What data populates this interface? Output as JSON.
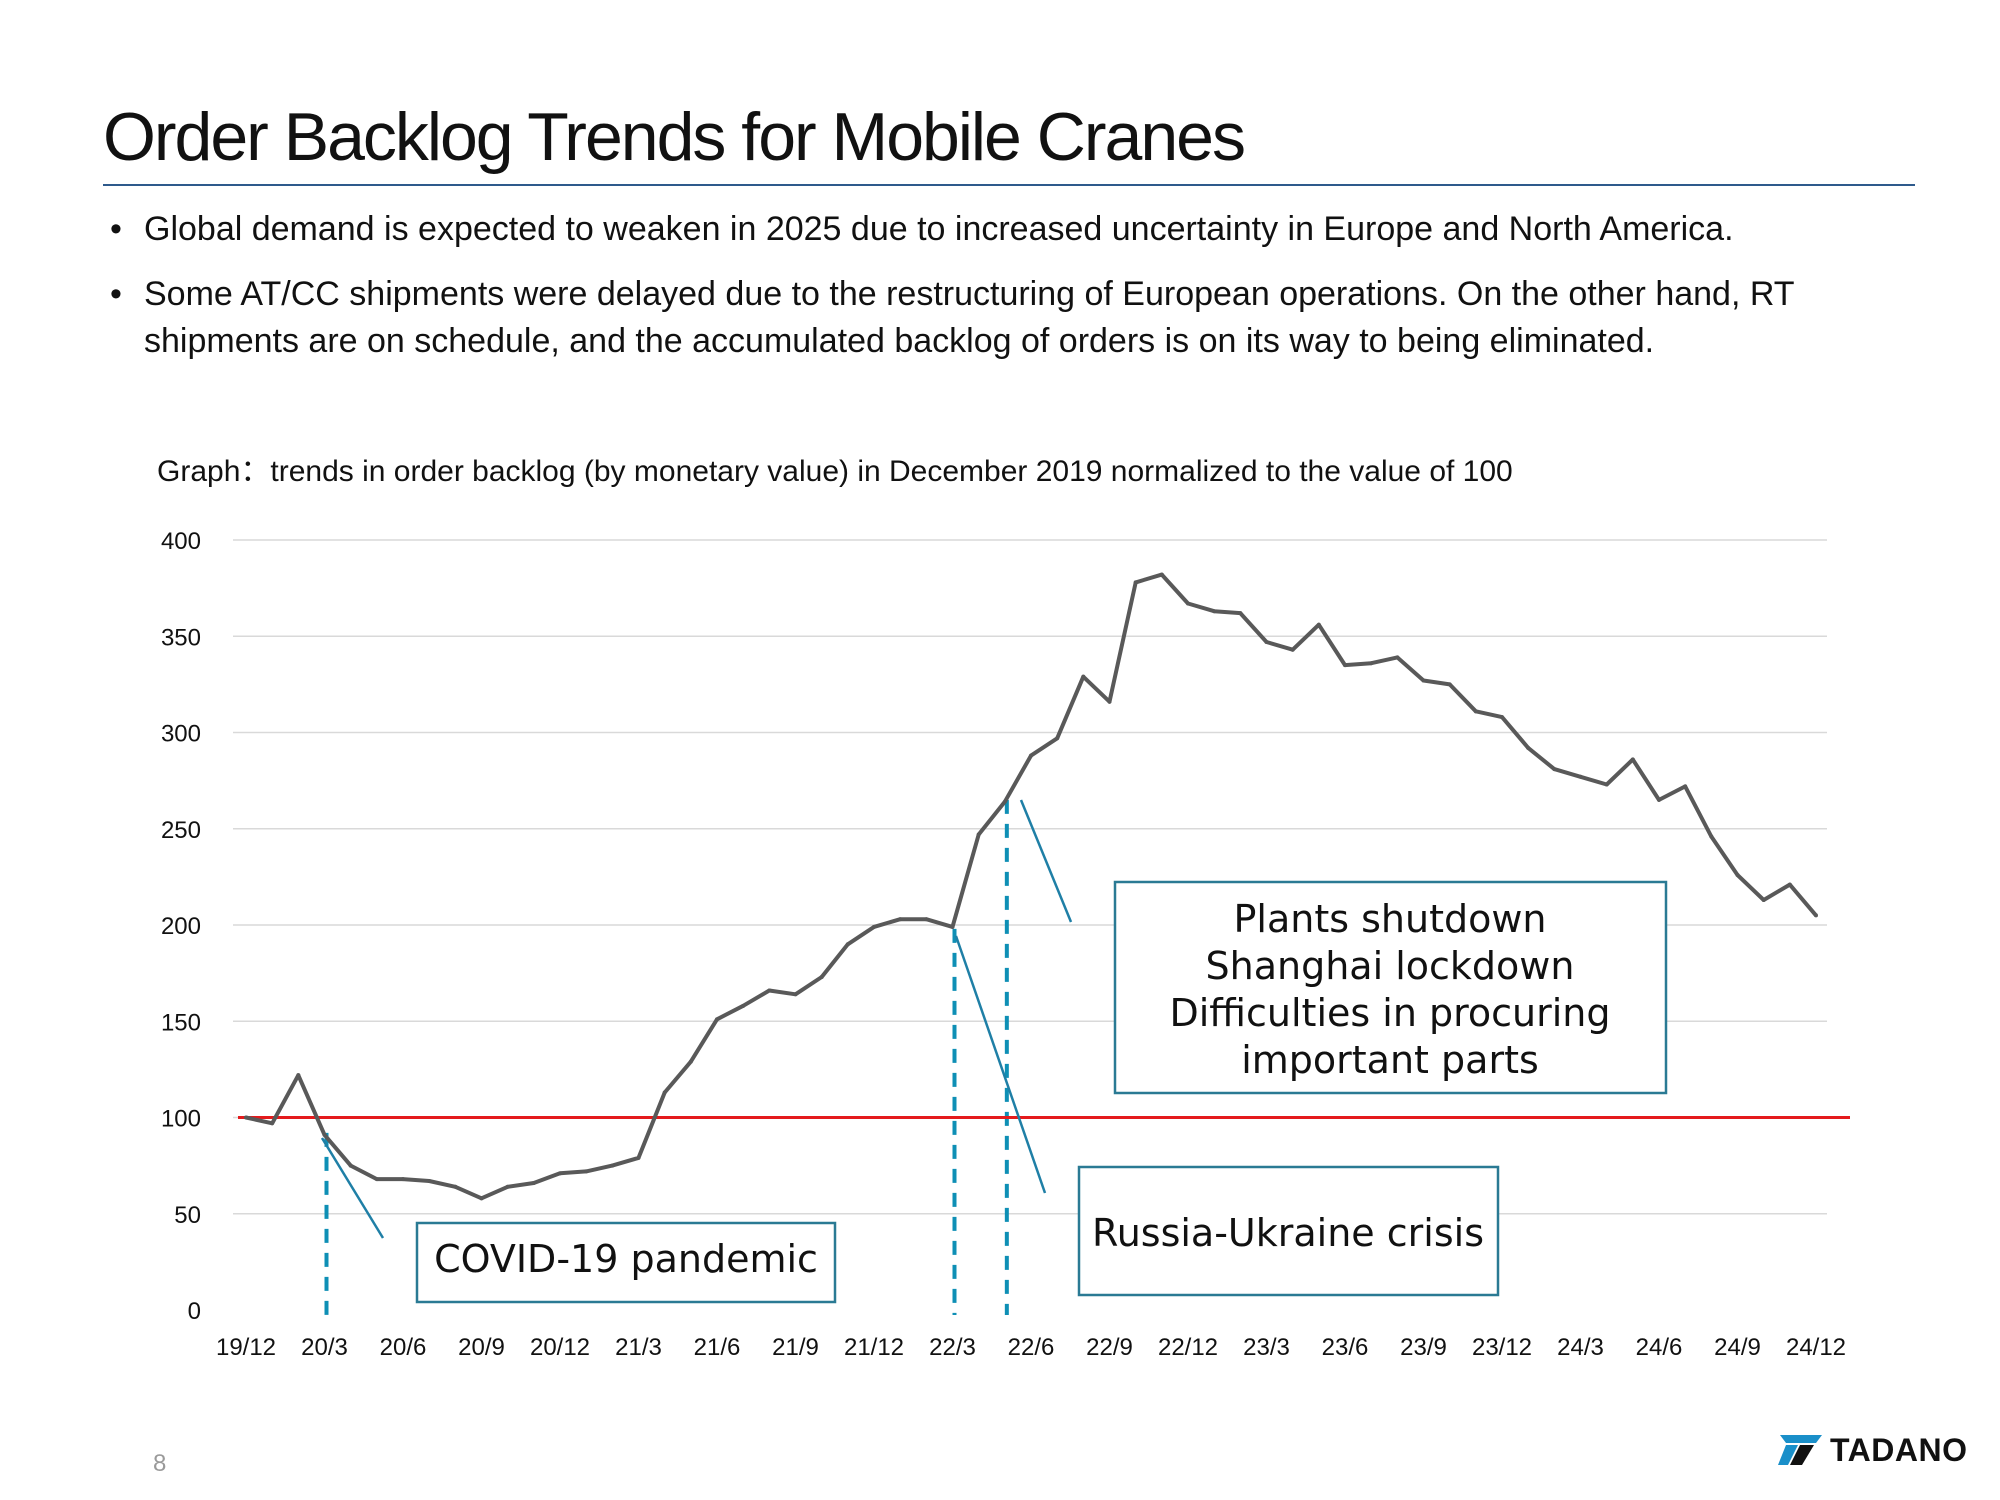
{
  "slide": {
    "title": "Order Backlog Trends for Mobile Cranes",
    "bullets": [
      "Global demand is expected to weaken in 2025 due to increased uncertainty in Europe and North America.",
      "Some AT/CC shipments were delayed due to the restructuring of European operations. On the other hand, RT shipments are on schedule, and the accumulated backlog of orders is on its way to being eliminated."
    ],
    "bullet_marker": "•",
    "page_number": "8",
    "logo_text": "TADANO",
    "title_rule_color": "#2e5a8c"
  },
  "chart_data": {
    "type": "line",
    "title": "Graph：trends in order backlog (by monetary value) in December 2019 normalized to the value of 100",
    "x_tick_labels": [
      "19/12",
      "20/3",
      "20/6",
      "20/9",
      "20/12",
      "21/3",
      "21/6",
      "21/9",
      "21/12",
      "22/3",
      "22/6",
      "22/9",
      "22/12",
      "23/3",
      "23/6",
      "23/9",
      "23/12",
      "24/3",
      "24/6",
      "24/9",
      "24/12"
    ],
    "ylim": [
      0,
      400
    ],
    "y_ticks": [
      0,
      50,
      100,
      150,
      200,
      250,
      300,
      350,
      400
    ],
    "grid": "horizontal",
    "line_color": "#595959",
    "series": [
      {
        "x": [
          "19/12",
          "20/1",
          "20/2",
          "20/3",
          "20/4",
          "20/5",
          "20/6",
          "20/7",
          "20/8",
          "20/9",
          "20/10",
          "20/11",
          "20/12",
          "21/1",
          "21/2",
          "21/3",
          "21/4",
          "21/5",
          "21/6",
          "21/7",
          "21/8",
          "21/9",
          "21/10",
          "21/11",
          "21/12",
          "22/1",
          "22/2",
          "22/3",
          "22/4",
          "22/5",
          "22/6",
          "22/7",
          "22/8",
          "22/9",
          "22/10",
          "22/11",
          "22/12",
          "23/1",
          "23/2",
          "23/3",
          "23/4",
          "23/5",
          "23/6",
          "23/7",
          "23/8",
          "23/9",
          "23/10",
          "23/11",
          "23/12",
          "24/1",
          "24/2",
          "24/3",
          "24/4",
          "24/5",
          "24/6",
          "24/7",
          "24/8",
          "24/9",
          "24/10",
          "24/11",
          "24/12"
        ],
        "values": [
          100,
          97,
          122,
          91,
          75,
          68,
          68,
          67,
          64,
          58,
          64,
          66,
          71,
          72,
          75,
          79,
          113,
          129,
          151,
          158,
          166,
          164,
          173,
          190,
          199,
          203,
          203,
          199,
          247,
          264,
          288,
          297,
          329,
          316,
          378,
          382,
          367,
          363,
          362,
          347,
          343,
          356,
          335,
          336,
          339,
          327,
          325,
          311,
          308,
          292,
          281,
          277,
          273,
          286,
          265,
          272,
          246,
          226,
          213,
          221,
          205
        ]
      }
    ],
    "reference_line": {
      "value": 100,
      "color": "#e41a1c"
    },
    "event_markers": [
      {
        "x": "20/3",
        "color": "#0e8fb5"
      },
      {
        "x": "22/3",
        "color": "#0e8fb5"
      },
      {
        "x": "22/5",
        "color": "#0e8fb5"
      }
    ],
    "annotations": [
      {
        "lines": [
          "COVID-19 pandemic"
        ],
        "box_color": "#2a7a94"
      },
      {
        "lines": [
          "Russia-Ukraine crisis"
        ],
        "box_color": "#2a7a94"
      },
      {
        "lines": [
          "Plants shutdown",
          "Shanghai lockdown",
          "Difficulties in procuring",
          "important parts"
        ],
        "box_color": "#2a7a94"
      }
    ]
  }
}
